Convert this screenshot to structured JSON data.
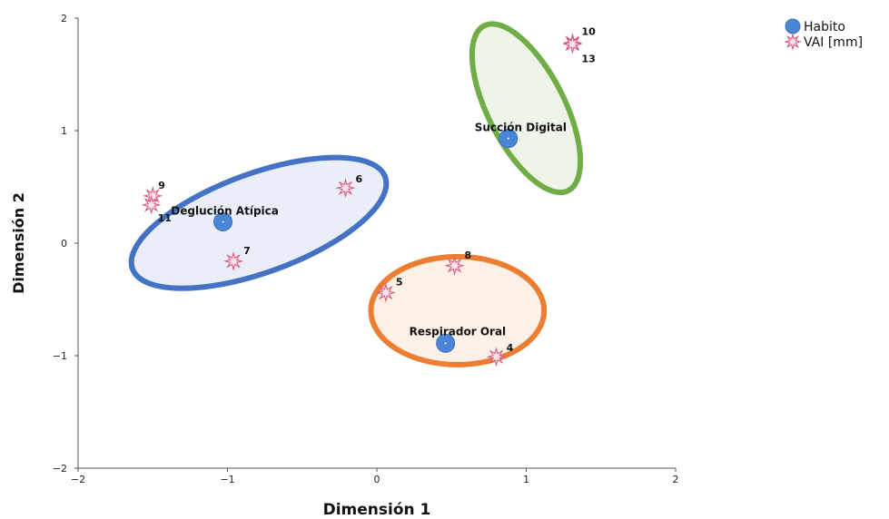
{
  "chart_data": {
    "type": "scatter",
    "xlabel": "Dimensión 1",
    "ylabel": "Dimensión 2",
    "xlim": [
      -2,
      2
    ],
    "ylim": [
      -2,
      2
    ],
    "x_ticks": [
      "−2",
      "−1",
      "0",
      "1",
      "2"
    ],
    "y_ticks": [
      "−2",
      "−1",
      "0",
      "1",
      "2"
    ],
    "grid": false,
    "legend_position": "top-right",
    "legend": [
      {
        "label": "Habito",
        "color": "#4a86d8",
        "marker": "circle"
      },
      {
        "label": "VAI [mm]",
        "color": "#d9507a",
        "marker": "star"
      }
    ],
    "series": [
      {
        "name": "Habito",
        "marker": "circle",
        "color": "#4a86d8",
        "points": [
          {
            "label": "Deglución Atípica",
            "x": -1.03,
            "y": 0.19
          },
          {
            "label": "Succión Digital",
            "x": 0.88,
            "y": 0.93
          },
          {
            "label": "Respirador Oral",
            "x": 0.46,
            "y": -0.89
          }
        ]
      },
      {
        "name": "VAI [mm]",
        "marker": "star",
        "color": "#d9507a",
        "points": [
          {
            "label": "4",
            "x": 0.8,
            "y": -1.01
          },
          {
            "label": "5",
            "x": 0.06,
            "y": -0.44
          },
          {
            "label": "6",
            "x": -0.21,
            "y": 0.49
          },
          {
            "label": "7",
            "x": -0.96,
            "y": -0.16
          },
          {
            "label": "8",
            "x": 0.52,
            "y": -0.2
          },
          {
            "label": "9",
            "x": -1.5,
            "y": 0.42
          },
          {
            "label": "10",
            "x": 1.31,
            "y": 1.78
          },
          {
            "label": "11",
            "x": -1.51,
            "y": 0.34
          },
          {
            "label": "13",
            "x": 1.31,
            "y": 1.77
          }
        ]
      }
    ],
    "groups": [
      {
        "name": "Deglución Atípica",
        "border_color": "#4472c4",
        "fill_color": "#e9eef8",
        "cx": -0.79,
        "cy": 0.18,
        "rx": 0.9,
        "ry": 0.44,
        "angle": 20
      },
      {
        "name": "Succión Digital",
        "border_color": "#70ad47",
        "fill_color": "#eef4e8",
        "cx": 1.0,
        "cy": 1.2,
        "rx": 0.62,
        "ry": 0.34,
        "angle": -63
      },
      {
        "name": "Respirador Oral",
        "border_color": "#ed7d31",
        "fill_color": "#fdf0e6",
        "cx": 0.54,
        "cy": -0.6,
        "rx": 0.58,
        "ry": 0.48,
        "angle": 0
      }
    ]
  }
}
